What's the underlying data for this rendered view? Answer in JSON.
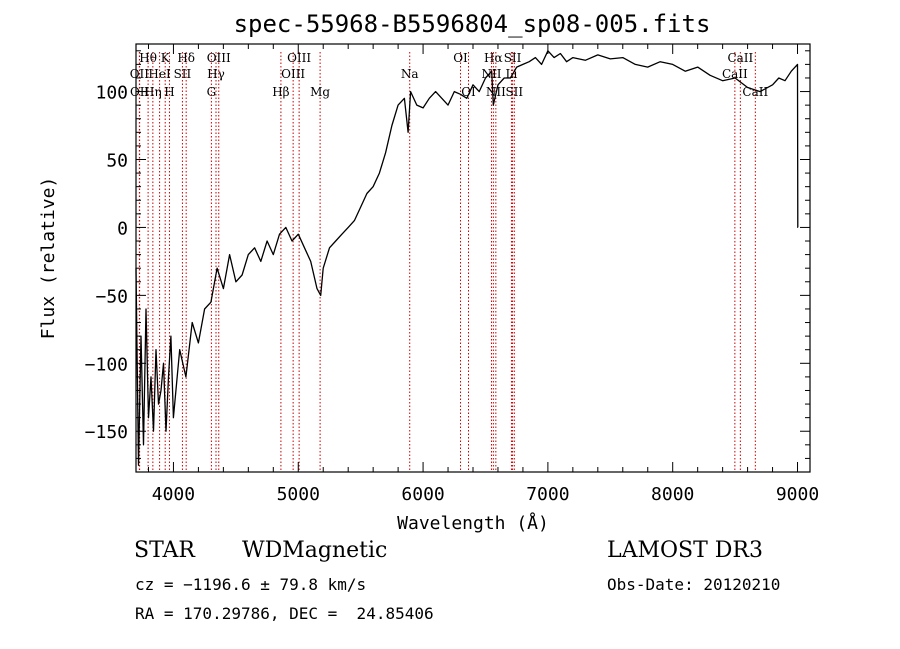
{
  "chart_data": {
    "type": "line",
    "title": "spec-55968-B5596804_sp08-005.fits",
    "xlabel": "Wavelength (Å)",
    "ylabel": "Flux (relative)",
    "xlim": [
      3700,
      9100
    ],
    "ylim": [
      -180,
      135
    ],
    "x_ticks": [
      4000,
      5000,
      6000,
      7000,
      8000,
      9000
    ],
    "y_ticks": [
      -150,
      -100,
      -50,
      0,
      50,
      100
    ],
    "spectrum": {
      "name": "flux",
      "x": [
        3700,
        3720,
        3740,
        3760,
        3780,
        3800,
        3820,
        3840,
        3860,
        3880,
        3900,
        3920,
        3940,
        3960,
        3980,
        4000,
        4050,
        4100,
        4150,
        4200,
        4250,
        4300,
        4350,
        4400,
        4450,
        4500,
        4550,
        4600,
        4650,
        4700,
        4750,
        4800,
        4850,
        4900,
        4950,
        5000,
        5050,
        5100,
        5150,
        5180,
        5200,
        5250,
        5300,
        5350,
        5400,
        5450,
        5500,
        5550,
        5600,
        5650,
        5700,
        5750,
        5800,
        5850,
        5880,
        5900,
        5950,
        6000,
        6050,
        6100,
        6150,
        6200,
        6250,
        6300,
        6350,
        6400,
        6450,
        6500,
        6550,
        6563,
        6600,
        6650,
        6700,
        6750,
        6800,
        6850,
        6900,
        6950,
        7000,
        7050,
        7100,
        7150,
        7200,
        7300,
        7400,
        7500,
        7600,
        7700,
        7800,
        7900,
        8000,
        8100,
        8200,
        8300,
        8400,
        8500,
        8600,
        8700,
        8800,
        8850,
        8900,
        8950,
        9000,
        9002,
        9004
      ],
      "y": [
        -30,
        -175,
        -80,
        -160,
        -60,
        -140,
        -110,
        -150,
        -90,
        -130,
        -120,
        -100,
        -150,
        -110,
        -80,
        -140,
        -90,
        -110,
        -70,
        -85,
        -60,
        -55,
        -30,
        -45,
        -20,
        -40,
        -35,
        -20,
        -15,
        -25,
        -10,
        -20,
        -5,
        0,
        -10,
        -5,
        -15,
        -25,
        -45,
        -50,
        -30,
        -15,
        -10,
        -5,
        0,
        5,
        15,
        25,
        30,
        40,
        55,
        75,
        90,
        95,
        70,
        100,
        90,
        88,
        95,
        100,
        95,
        90,
        100,
        98,
        95,
        105,
        100,
        110,
        115,
        90,
        105,
        110,
        110,
        118,
        120,
        122,
        125,
        120,
        130,
        125,
        128,
        122,
        125,
        123,
        127,
        124,
        125,
        120,
        118,
        122,
        120,
        115,
        118,
        112,
        108,
        110,
        103,
        100,
        105,
        110,
        108,
        115,
        120,
        0,
        0
      ]
    },
    "spectral_lines": [
      {
        "label": "Hθ",
        "x": 3797,
        "row": 0
      },
      {
        "label": "K",
        "x": 3934,
        "row": 0
      },
      {
        "label": "Hδ",
        "x": 4102,
        "row": 0
      },
      {
        "label": "OIII",
        "x": 4363,
        "row": 0
      },
      {
        "label": "OIII",
        "x": 5007,
        "row": 0
      },
      {
        "label": "OI",
        "x": 6300,
        "row": 0
      },
      {
        "label": "Hα",
        "x": 6563,
        "row": 0
      },
      {
        "label": "SII",
        "x": 6717,
        "row": 0
      },
      {
        "label": "CaII",
        "x": 8542,
        "row": 0
      },
      {
        "label": "OII",
        "x": 3727,
        "row": 1
      },
      {
        "label": "HeI",
        "x": 3889,
        "row": 1
      },
      {
        "label": "SII",
        "x": 4072,
        "row": 1
      },
      {
        "label": "Hγ",
        "x": 4341,
        "row": 1
      },
      {
        "label": "OIII",
        "x": 4959,
        "row": 1
      },
      {
        "label": "Na",
        "x": 5893,
        "row": 1
      },
      {
        "label": "NII",
        "x": 6548,
        "row": 1
      },
      {
        "label": "Li",
        "x": 6708,
        "row": 1
      },
      {
        "label": "CaII",
        "x": 8498,
        "row": 1
      },
      {
        "label": "OII",
        "x": 3729,
        "row": 2
      },
      {
        "label": "Hη",
        "x": 3835,
        "row": 2
      },
      {
        "label": "H",
        "x": 3968,
        "row": 2
      },
      {
        "label": "G",
        "x": 4304,
        "row": 2
      },
      {
        "label": "Hβ",
        "x": 4861,
        "row": 2
      },
      {
        "label": "Mg",
        "x": 5175,
        "row": 2
      },
      {
        "label": "OI",
        "x": 6364,
        "row": 2
      },
      {
        "label": "NII",
        "x": 6583,
        "row": 2
      },
      {
        "label": "SII",
        "x": 6731,
        "row": 2
      },
      {
        "label": "CaII",
        "x": 8662,
        "row": 2
      }
    ],
    "grid": false,
    "legend": "none",
    "line_color": "#000000",
    "marker_color": "#cc0000"
  },
  "info": {
    "object_class": "STAR",
    "subclass": "WDMagnetic",
    "survey": "LAMOST DR3",
    "cz": "cz = −1196.6 ± 79.8 km/s",
    "obs_date": "Obs-Date: 20120210",
    "coords": "RA = 170.29786, DEC =  24.85406"
  }
}
